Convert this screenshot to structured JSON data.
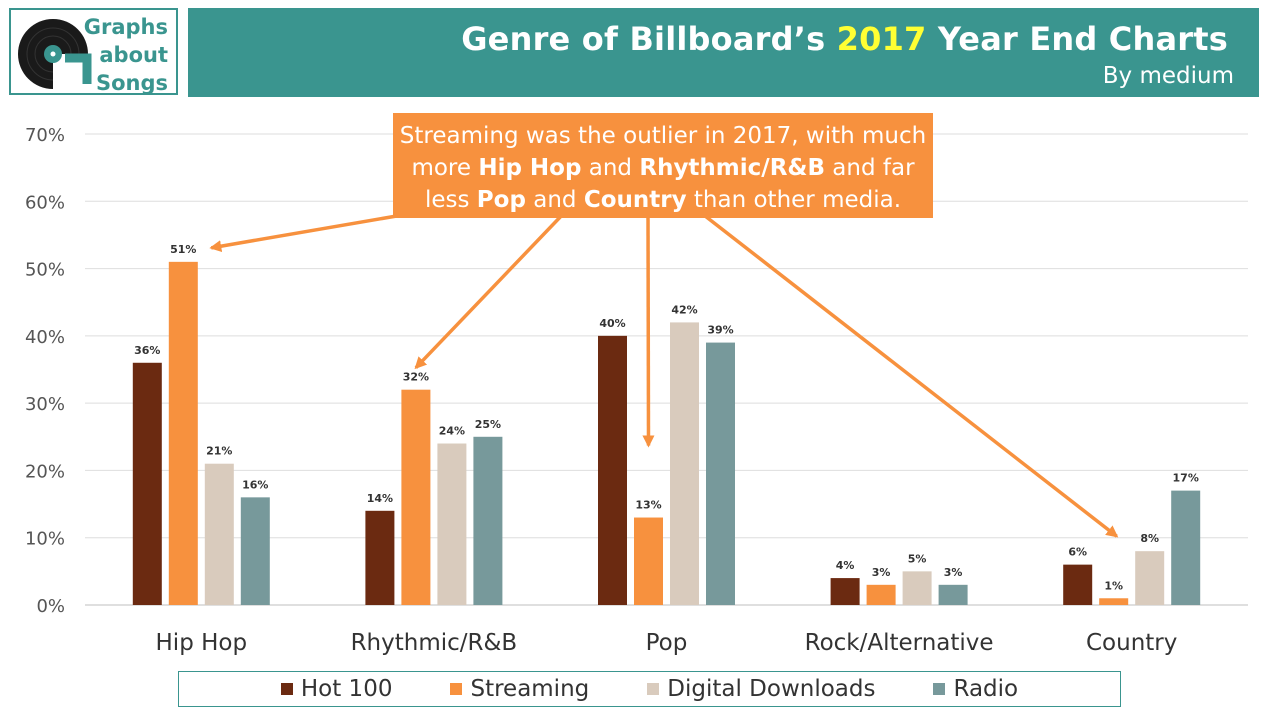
{
  "logo": {
    "line1": "Graphs",
    "line2": "about",
    "line3": "Songs"
  },
  "header": {
    "title_pre": "Genre of Billboard’s ",
    "title_year": "2017",
    "title_post": " Year End Charts",
    "subtitle": "By medium"
  },
  "callout": {
    "p1": "Streaming was the outlier in 2017, with much more ",
    "b1": "Hip Hop",
    "p2": " and ",
    "b2": "Rhythmic/R&B",
    "p3": " and far less ",
    "b3": "Pop",
    "p4": " and ",
    "b4": "Country",
    "p5": " than other media."
  },
  "colors": {
    "brand": "#3a958f",
    "hot100": "#6b2a11",
    "streaming": "#f7913e",
    "downloads": "#d9cbbd",
    "radio": "#77999b",
    "callout": "#f7913e"
  },
  "chart_data": {
    "type": "bar",
    "categories": [
      "Hip Hop",
      "Rhythmic/R&B",
      "Pop",
      "Rock/Alternative",
      "Country"
    ],
    "series": [
      {
        "name": "Hot 100",
        "values": [
          36,
          14,
          40,
          4,
          6
        ],
        "labels": [
          "36%",
          "14%",
          "40%",
          "4%",
          "6%"
        ]
      },
      {
        "name": "Streaming",
        "values": [
          51,
          32,
          13,
          3,
          1
        ],
        "labels": [
          "51%",
          "32%",
          "13%",
          "3%",
          "1%"
        ]
      },
      {
        "name": "Digital Downloads",
        "values": [
          21,
          24,
          42,
          5,
          8
        ],
        "labels": [
          "21%",
          "24%",
          "42%",
          "5%",
          "8%"
        ]
      },
      {
        "name": "Radio",
        "values": [
          16,
          25,
          39,
          3,
          17
        ],
        "labels": [
          "16%",
          "25%",
          "39%",
          "3%",
          "17%"
        ]
      }
    ],
    "yticks": [
      "0%",
      "10%",
      "20%",
      "30%",
      "40%",
      "50%",
      "60%",
      "70%"
    ],
    "ylim": [
      0,
      70
    ],
    "grid": true,
    "legend": "bottom",
    "annotation_targets": [
      {
        "category": "Hip Hop",
        "series": "Streaming"
      },
      {
        "category": "Rhythmic/R&B",
        "series": "Streaming"
      },
      {
        "category": "Pop",
        "series": "Streaming"
      },
      {
        "category": "Country",
        "series": "Streaming"
      }
    ]
  }
}
